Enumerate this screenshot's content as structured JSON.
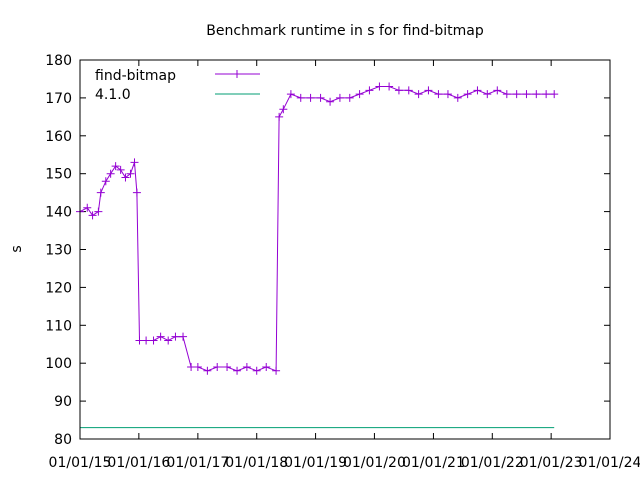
{
  "chart_data": {
    "type": "line",
    "title": "Benchmark runtime in s for find-bitmap",
    "xlabel": "",
    "ylabel": "s",
    "ylim": [
      80,
      180
    ],
    "xlim": [
      "2015-01-01",
      "2024-01-01"
    ],
    "yticks": [
      80,
      90,
      100,
      110,
      120,
      130,
      140,
      150,
      160,
      170,
      180
    ],
    "xticks": [
      "01/01/15",
      "01/01/16",
      "01/01/17",
      "01/01/18",
      "01/01/19",
      "01/01/20",
      "01/01/21",
      "01/01/22",
      "01/01/23",
      "01/01/24"
    ],
    "xtick_dates": [
      "2015-01-01",
      "2016-01-01",
      "2017-01-01",
      "2018-01-01",
      "2019-01-01",
      "2020-01-01",
      "2021-01-01",
      "2022-01-01",
      "2023-01-01",
      "2024-01-01"
    ],
    "grid": false,
    "legend_position": "top-left",
    "series": [
      {
        "name": "find-bitmap",
        "color": "#9400d3",
        "marker": "plus",
        "points": [
          [
            "2015-01-01",
            140
          ],
          [
            "2015-02-15",
            141
          ],
          [
            "2015-03-20",
            139
          ],
          [
            "2015-04-25",
            140
          ],
          [
            "2015-05-10",
            145
          ],
          [
            "2015-06-10",
            148
          ],
          [
            "2015-07-10",
            150
          ],
          [
            "2015-08-10",
            152
          ],
          [
            "2015-09-10",
            151
          ],
          [
            "2015-10-10",
            149
          ],
          [
            "2015-11-10",
            150
          ],
          [
            "2015-12-05",
            153
          ],
          [
            "2015-12-20",
            145
          ],
          [
            "2016-01-05",
            106
          ],
          [
            "2016-02-15",
            106
          ],
          [
            "2016-04-01",
            106
          ],
          [
            "2016-05-15",
            107
          ],
          [
            "2016-07-01",
            106
          ],
          [
            "2016-08-15",
            107
          ],
          [
            "2016-10-01",
            107
          ],
          [
            "2016-11-20",
            99
          ],
          [
            "2017-01-01",
            99
          ],
          [
            "2017-03-01",
            98
          ],
          [
            "2017-05-01",
            99
          ],
          [
            "2017-07-01",
            99
          ],
          [
            "2017-09-01",
            98
          ],
          [
            "2017-11-01",
            99
          ],
          [
            "2018-01-01",
            98
          ],
          [
            "2018-03-01",
            99
          ],
          [
            "2018-05-01",
            98
          ],
          [
            "2018-05-20",
            165
          ],
          [
            "2018-06-15",
            167
          ],
          [
            "2018-08-01",
            171
          ],
          [
            "2018-10-01",
            170
          ],
          [
            "2018-12-01",
            170
          ],
          [
            "2019-02-01",
            170
          ],
          [
            "2019-04-01",
            169
          ],
          [
            "2019-06-01",
            170
          ],
          [
            "2019-08-01",
            170
          ],
          [
            "2019-10-01",
            171
          ],
          [
            "2019-12-01",
            172
          ],
          [
            "2020-02-01",
            173
          ],
          [
            "2020-04-01",
            173
          ],
          [
            "2020-06-01",
            172
          ],
          [
            "2020-08-01",
            172
          ],
          [
            "2020-10-01",
            171
          ],
          [
            "2020-12-01",
            172
          ],
          [
            "2021-02-01",
            171
          ],
          [
            "2021-04-01",
            171
          ],
          [
            "2021-06-01",
            170
          ],
          [
            "2021-08-01",
            171
          ],
          [
            "2021-10-01",
            172
          ],
          [
            "2021-12-01",
            171
          ],
          [
            "2022-02-01",
            172
          ],
          [
            "2022-04-01",
            171
          ],
          [
            "2022-06-01",
            171
          ],
          [
            "2022-08-01",
            171
          ],
          [
            "2022-10-01",
            171
          ],
          [
            "2022-12-01",
            171
          ],
          [
            "2023-01-20",
            171
          ]
        ]
      },
      {
        "name": "4.1.0",
        "color": "#009e73",
        "marker": "none",
        "points": [
          [
            "2015-01-01",
            83
          ],
          [
            "2023-01-20",
            83
          ]
        ]
      }
    ]
  }
}
